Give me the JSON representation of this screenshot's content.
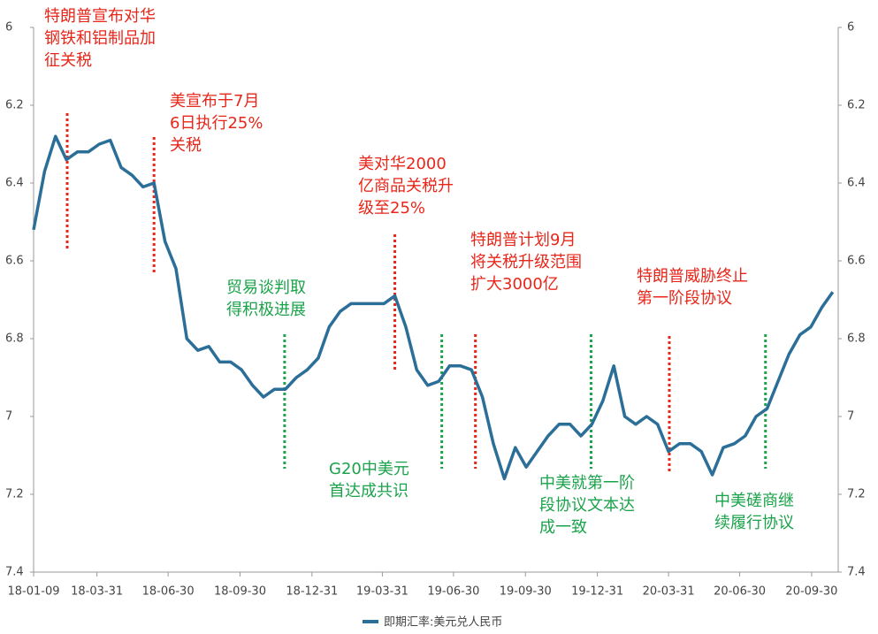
{
  "chart_data": {
    "type": "line",
    "legend": "bottom",
    "y_inverted": true,
    "x": [
      "18-01-09",
      "18-01-23",
      "18-02-06",
      "18-02-20",
      "18-03-06",
      "18-03-20",
      "18-04-03",
      "18-04-17",
      "18-05-01",
      "18-05-15",
      "18-05-29",
      "18-06-12",
      "18-06-26",
      "18-07-10",
      "18-07-24",
      "18-08-07",
      "18-08-21",
      "18-09-04",
      "18-09-18",
      "18-10-02",
      "18-10-16",
      "18-10-30",
      "18-11-13",
      "18-11-27",
      "18-12-11",
      "18-12-25",
      "19-01-08",
      "19-01-22",
      "19-02-05",
      "19-02-19",
      "19-03-05",
      "19-03-19",
      "19-04-02",
      "19-04-16",
      "19-04-30",
      "19-05-14",
      "19-05-28",
      "19-06-11",
      "19-06-25",
      "19-07-09",
      "19-07-23",
      "19-08-06",
      "19-08-20",
      "19-09-03",
      "19-09-17",
      "19-10-01",
      "19-10-15",
      "19-10-29",
      "19-11-12",
      "19-11-26",
      "19-12-10",
      "19-12-24",
      "20-01-07",
      "20-01-21",
      "20-02-04",
      "20-02-18",
      "20-03-03",
      "20-03-17",
      "20-03-31",
      "20-04-14",
      "20-04-28",
      "20-05-12",
      "20-05-26",
      "20-06-09",
      "20-06-23",
      "20-07-07",
      "20-07-21",
      "20-08-04",
      "20-08-18",
      "20-09-01",
      "20-09-15",
      "20-09-29",
      "20-10-13",
      "20-10-27"
    ],
    "series": [
      {
        "name": "即期汇率:美元兑人民币",
        "color": "#2b6f98",
        "values": [
          6.52,
          6.37,
          6.28,
          6.34,
          6.32,
          6.32,
          6.3,
          6.29,
          6.36,
          6.38,
          6.41,
          6.4,
          6.55,
          6.62,
          6.8,
          6.83,
          6.82,
          6.86,
          6.86,
          6.88,
          6.92,
          6.95,
          6.93,
          6.93,
          6.9,
          6.88,
          6.85,
          6.77,
          6.73,
          6.71,
          6.71,
          6.71,
          6.71,
          6.69,
          6.77,
          6.88,
          6.92,
          6.91,
          6.87,
          6.87,
          6.88,
          6.95,
          7.07,
          7.16,
          7.08,
          7.13,
          7.09,
          7.05,
          7.02,
          7.02,
          7.05,
          7.02,
          6.96,
          6.87,
          7.0,
          7.02,
          7.0,
          7.02,
          7.09,
          7.07,
          7.07,
          7.09,
          7.15,
          7.08,
          7.07,
          7.05,
          7.0,
          6.98,
          6.91,
          6.84,
          6.79,
          6.77,
          6.72,
          6.68
        ]
      }
    ],
    "xlim": [
      "18-01-09",
      "20-11-03"
    ],
    "xticks": [
      "18-01-09",
      "18-03-31",
      "18-06-30",
      "18-09-30",
      "18-12-31",
      "19-03-31",
      "19-06-30",
      "19-09-30",
      "19-12-31",
      "20-03-31",
      "20-06-30",
      "20-09-30"
    ],
    "ylim": [
      6,
      7.4
    ],
    "yticks": [
      6,
      6.2,
      6.4,
      6.6,
      6.8,
      7,
      7.2,
      7.4
    ],
    "y2lim": [
      6,
      7.4
    ],
    "y2ticks": [
      6,
      6.2,
      6.4,
      6.6,
      6.8,
      7,
      7.2,
      7.4
    ],
    "annotations": [
      {
        "text": [
          "特朗普宣布对华",
          "钢铁和铝制品加",
          "征关税"
        ],
        "x": "18-02-21",
        "color": "#e8261a"
      },
      {
        "text": [
          "美宣布于7月",
          "6日执行25%",
          "关税"
        ],
        "x": "18-06-12",
        "color": "#e8261a"
      },
      {
        "text": [
          "美对华2000",
          "亿商品关税升",
          "级至25%"
        ],
        "x": "19-04-16",
        "color": "#e8261a"
      },
      {
        "text": [
          "特朗普计划9月",
          "将关税升级范围",
          "扩大3000亿"
        ],
        "x": "19-07-28",
        "color": "#e8261a"
      },
      {
        "text": [
          "特朗普威胁终止",
          "第一阶段协议"
        ],
        "x": "20-04-01",
        "color": "#e8261a"
      },
      {
        "text": [
          "贸易谈判取",
          "得积极进展"
        ],
        "x": "18-11-26",
        "color": "#1aa34a"
      },
      {
        "text": [
          "G20中美元",
          "首达成共识"
        ],
        "x": "19-06-15",
        "color": "#1aa34a"
      },
      {
        "text": [
          "中美就第一阶",
          "段协议文本达",
          "成一致"
        ],
        "x": "19-12-23",
        "color": "#1aa34a"
      },
      {
        "text": [
          "中美磋商继",
          "续履行协议"
        ],
        "x": "20-08-02",
        "color": "#1aa34a"
      }
    ]
  }
}
